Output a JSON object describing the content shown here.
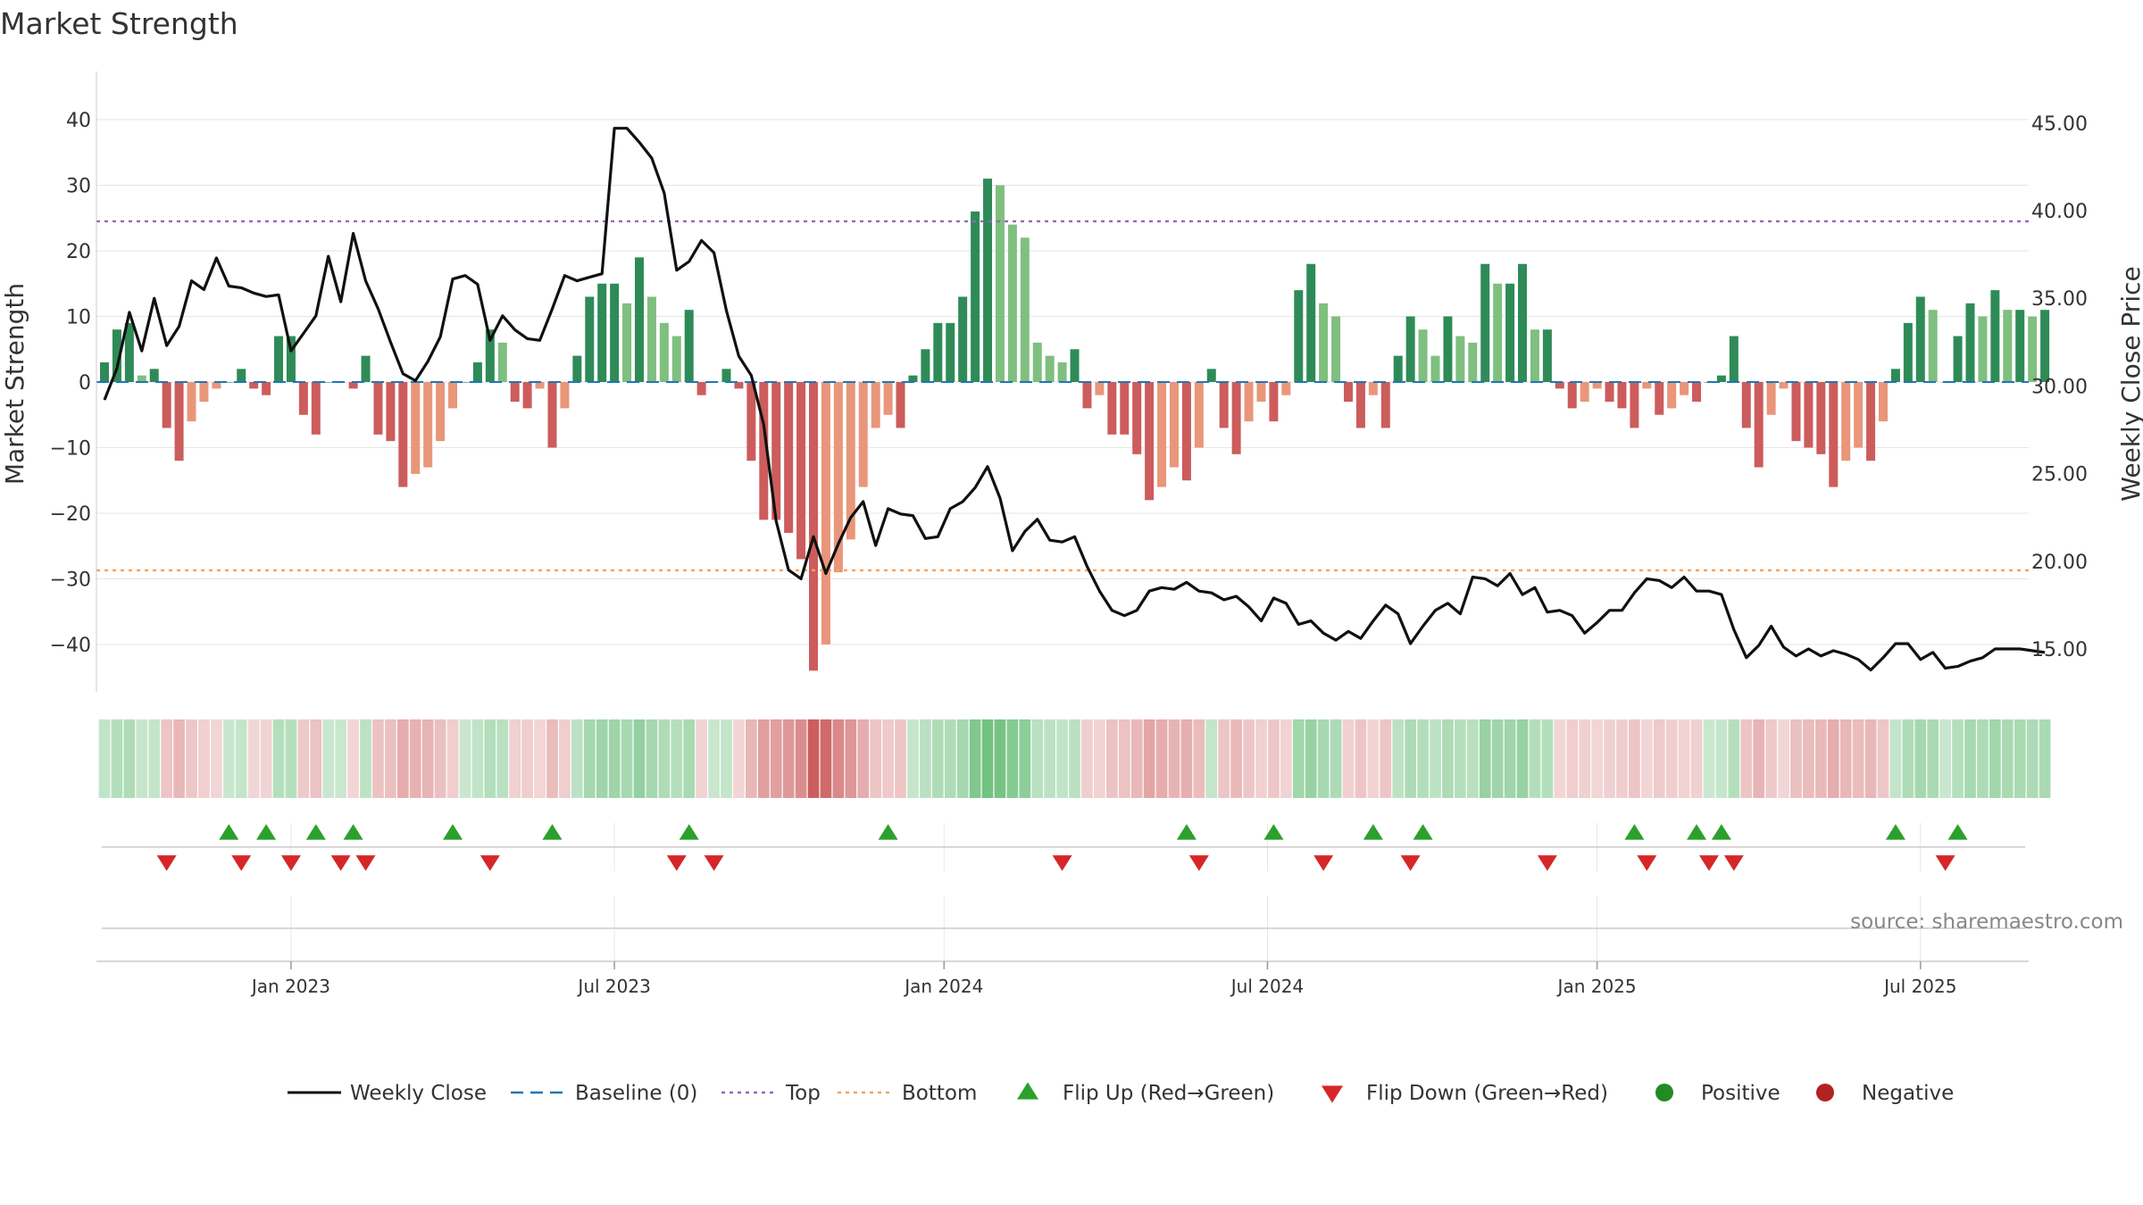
{
  "chart_data": {
    "type": "bar+line",
    "title": "Market Strength",
    "ylabel_left": "Market Strength",
    "ylabel_right": "Weekly Close Price",
    "ylim_left": [
      -48,
      48
    ],
    "ylim_right": [
      10.74,
      47.0
    ],
    "yticks_left": [
      40,
      30,
      20,
      10,
      0,
      -10,
      -20,
      -30,
      -40
    ],
    "yticks_left_labels": [
      "40",
      "30",
      "20",
      "10",
      "0",
      "−10",
      "−20",
      "−30",
      "−40"
    ],
    "yticks_right": [
      45,
      40,
      35,
      30,
      25,
      20,
      15
    ],
    "yticks_right_labels": [
      "45.00",
      "40.00",
      "35.00",
      "30.00",
      "25.00",
      "20.00",
      "15.00"
    ],
    "top_line": 24.5,
    "bottom_line": -28.7,
    "date_ticks": [
      {
        "label": "Jan 2023",
        "week": 15
      },
      {
        "label": "Jul 2023",
        "week": 41
      },
      {
        "label": "Jan 2024",
        "week": 67.5
      },
      {
        "label": "Jul 2024",
        "week": 93.5
      },
      {
        "label": "Jan 2025",
        "week": 120
      },
      {
        "label": "Jul 2025",
        "week": 146
      }
    ],
    "strength": [
      3,
      8,
      9,
      1,
      2,
      -7,
      -12,
      -6,
      -3,
      -1,
      0,
      2,
      -1,
      -2,
      7,
      7,
      -5,
      -8,
      0,
      0,
      -1,
      4,
      -8,
      -9,
      -16,
      -14,
      -13,
      -9,
      -4,
      0,
      3,
      8,
      6,
      -3,
      -4,
      -1,
      -10,
      -4,
      4,
      13,
      15,
      15,
      12,
      19,
      13,
      9,
      7,
      11,
      -2,
      0,
      2,
      -1,
      -12,
      -21,
      -21,
      -23,
      -27,
      -44,
      -40,
      -29,
      -24,
      -16,
      -7,
      -5,
      -7,
      1,
      5,
      9,
      9,
      13,
      26,
      31,
      30,
      24,
      22,
      6,
      4,
      3,
      5,
      -4,
      -2,
      -8,
      -8,
      -11,
      -18,
      -16,
      -13,
      -15,
      -10,
      2,
      -7,
      -11,
      -6,
      -3,
      -6,
      -2,
      14,
      18,
      12,
      10,
      -3,
      -7,
      -2,
      -7,
      4,
      10,
      8,
      4,
      10,
      7,
      6,
      18,
      15,
      15,
      18,
      8,
      8,
      -1,
      -4,
      -3,
      -1,
      -3,
      -4,
      -7,
      -1,
      -5,
      -4,
      -2,
      -3,
      0,
      1,
      7,
      -7,
      -13,
      -5,
      -1,
      -9,
      -10,
      -11,
      -16,
      -12,
      -10,
      -12,
      -6,
      2,
      9,
      13,
      11,
      0,
      7,
      12,
      10,
      14,
      11,
      11,
      10,
      11
    ],
    "weekly_close": [
      29.2,
      31.0,
      34.2,
      32.0,
      35.0,
      32.3,
      33.4,
      36.0,
      35.5,
      37.3,
      35.7,
      35.6,
      35.3,
      35.1,
      35.2,
      32.0,
      33.0,
      34.0,
      37.4,
      34.8,
      38.7,
      36.0,
      34.4,
      32.5,
      30.7,
      30.3,
      31.4,
      32.8,
      36.1,
      36.3,
      35.8,
      32.6,
      34.0,
      33.2,
      32.7,
      32.6,
      34.4,
      36.3,
      36.0,
      36.2,
      36.4,
      44.7,
      44.7,
      43.9,
      43.0,
      41.0,
      36.6,
      37.1,
      38.3,
      37.6,
      34.3,
      31.7,
      30.6,
      27.8,
      22.3,
      19.5,
      19.0,
      21.4,
      19.3,
      21.0,
      22.5,
      23.4,
      20.9,
      23.0,
      22.7,
      22.6,
      21.3,
      21.4,
      23.0,
      23.4,
      24.2,
      25.4,
      23.6,
      20.6,
      21.7,
      22.4,
      21.2,
      21.1,
      21.4,
      19.7,
      18.3,
      17.2,
      16.9,
      17.2,
      18.3,
      18.5,
      18.4,
      18.8,
      18.3,
      18.2,
      17.8,
      18.0,
      17.4,
      16.6,
      17.9,
      17.6,
      16.4,
      16.6,
      15.9,
      15.5,
      16.0,
      15.6,
      16.6,
      17.5,
      17.0,
      15.3,
      16.3,
      17.2,
      17.6,
      17.0,
      19.1,
      19.0,
      18.6,
      19.3,
      18.1,
      18.5,
      17.1,
      17.2,
      16.9,
      15.9,
      16.5,
      17.2,
      17.2,
      18.2,
      19.0,
      18.9,
      18.5,
      19.1,
      18.3,
      18.3,
      18.1,
      16.1,
      14.5,
      15.2,
      16.3,
      15.1,
      14.6,
      15.0,
      14.6,
      14.9,
      14.7,
      14.4,
      13.8,
      14.5,
      15.3,
      15.3,
      14.4,
      14.8,
      13.9,
      14.0,
      14.3,
      14.5,
      15.0,
      15.0,
      15.0,
      14.9,
      14.8
    ],
    "flip_up_weeks": [
      10,
      13,
      17,
      20,
      28,
      36,
      47,
      63,
      87,
      94,
      102,
      106,
      123,
      128,
      130,
      144,
      149
    ],
    "flip_down_weeks": [
      5,
      11,
      15,
      19,
      21,
      31,
      46,
      49,
      77,
      88,
      98,
      105,
      116,
      124,
      129,
      131,
      148
    ],
    "series": [
      {
        "name": "Weekly Close",
        "color": "#111111"
      },
      {
        "name": "Baseline (0)",
        "color": "#1f77b4"
      },
      {
        "name": "Top",
        "color": "#9467bd"
      },
      {
        "name": "Bottom",
        "color": "#f4a261"
      },
      {
        "name": "Flip Up (Red→Green)",
        "color": "#2ca02c"
      },
      {
        "name": "Flip Down (Green→Red)",
        "color": "#d62728"
      },
      {
        "name": "Positive",
        "color": "#228b22"
      },
      {
        "name": "Negative",
        "color": "#b22222"
      }
    ],
    "legend_position": "bottom-center",
    "source": "source: sharemaestro.com"
  },
  "colors": {
    "strong_pos": "#2e8b57",
    "weak_pos": "#7fbf7f",
    "strong_neg": "#cd5c5c",
    "weak_neg": "#e9967a",
    "grid": "#e6e6e6",
    "axis": "#cccccc"
  }
}
